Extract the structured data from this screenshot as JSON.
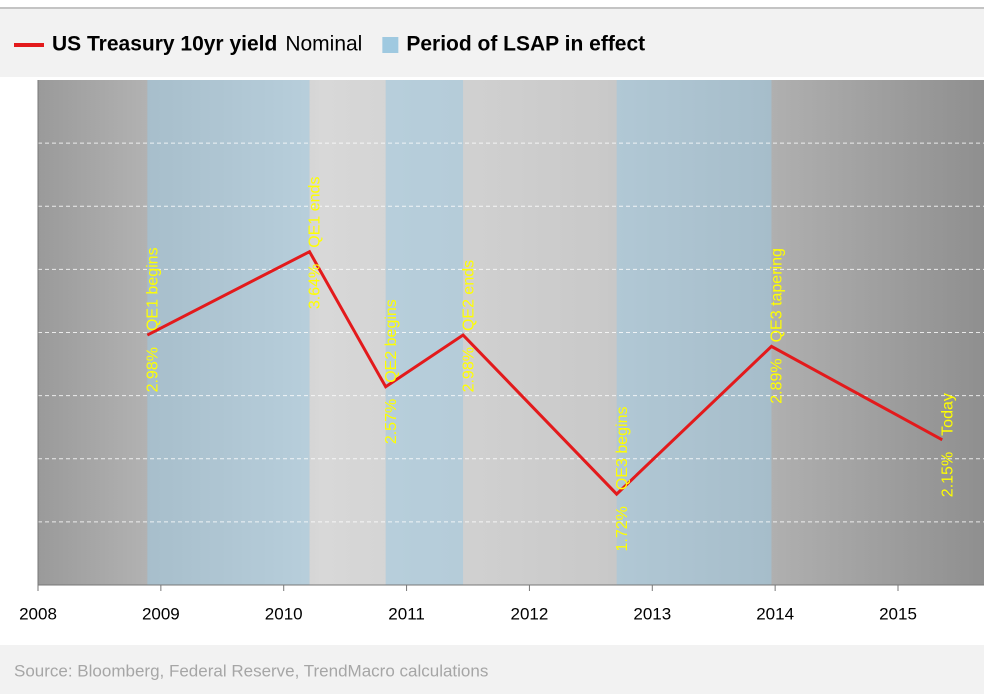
{
  "chart_data": {
    "type": "line",
    "subtitle": "Nominal",
    "x": [
      2008.89,
      2010.21,
      2010.83,
      2011.46,
      2012.71,
      2013.97,
      2015.36
    ],
    "series": [
      {
        "name": "US Treasury 10yr yield",
        "color": "#e31a1c",
        "values": [
          2.98,
          3.64,
          2.57,
          2.98,
          1.72,
          2.89,
          2.15
        ],
        "value_labels": [
          "2.98%",
          "3.64%",
          "2.57%",
          "2.98%",
          "1.72%",
          "2.89%",
          "2.15%"
        ]
      }
    ],
    "annotations": [
      "QE1 begins",
      "QE1 ends",
      "QE2 begins",
      "QE2 ends",
      "QE3 begins",
      "QE3 tapering",
      "Today"
    ],
    "shaded_periods": {
      "name": "Period of LSAP in effect",
      "color": "#9fc9e0",
      "ranges": [
        [
          2008.89,
          2010.21
        ],
        [
          2010.83,
          2011.46
        ],
        [
          2012.71,
          2013.97
        ]
      ]
    },
    "xlim": [
      2008,
      2015.7
    ],
    "xticks": [
      2008,
      2009,
      2010,
      2011,
      2012,
      2013,
      2014,
      2015
    ],
    "ylim": [
      1,
      5
    ],
    "yticks": [
      1.5,
      2,
      2.5,
      3,
      3.5,
      4,
      4.5
    ],
    "grid": true,
    "source": "Source: Bloomberg, Federal Reserve, TrendMacro calculations"
  }
}
